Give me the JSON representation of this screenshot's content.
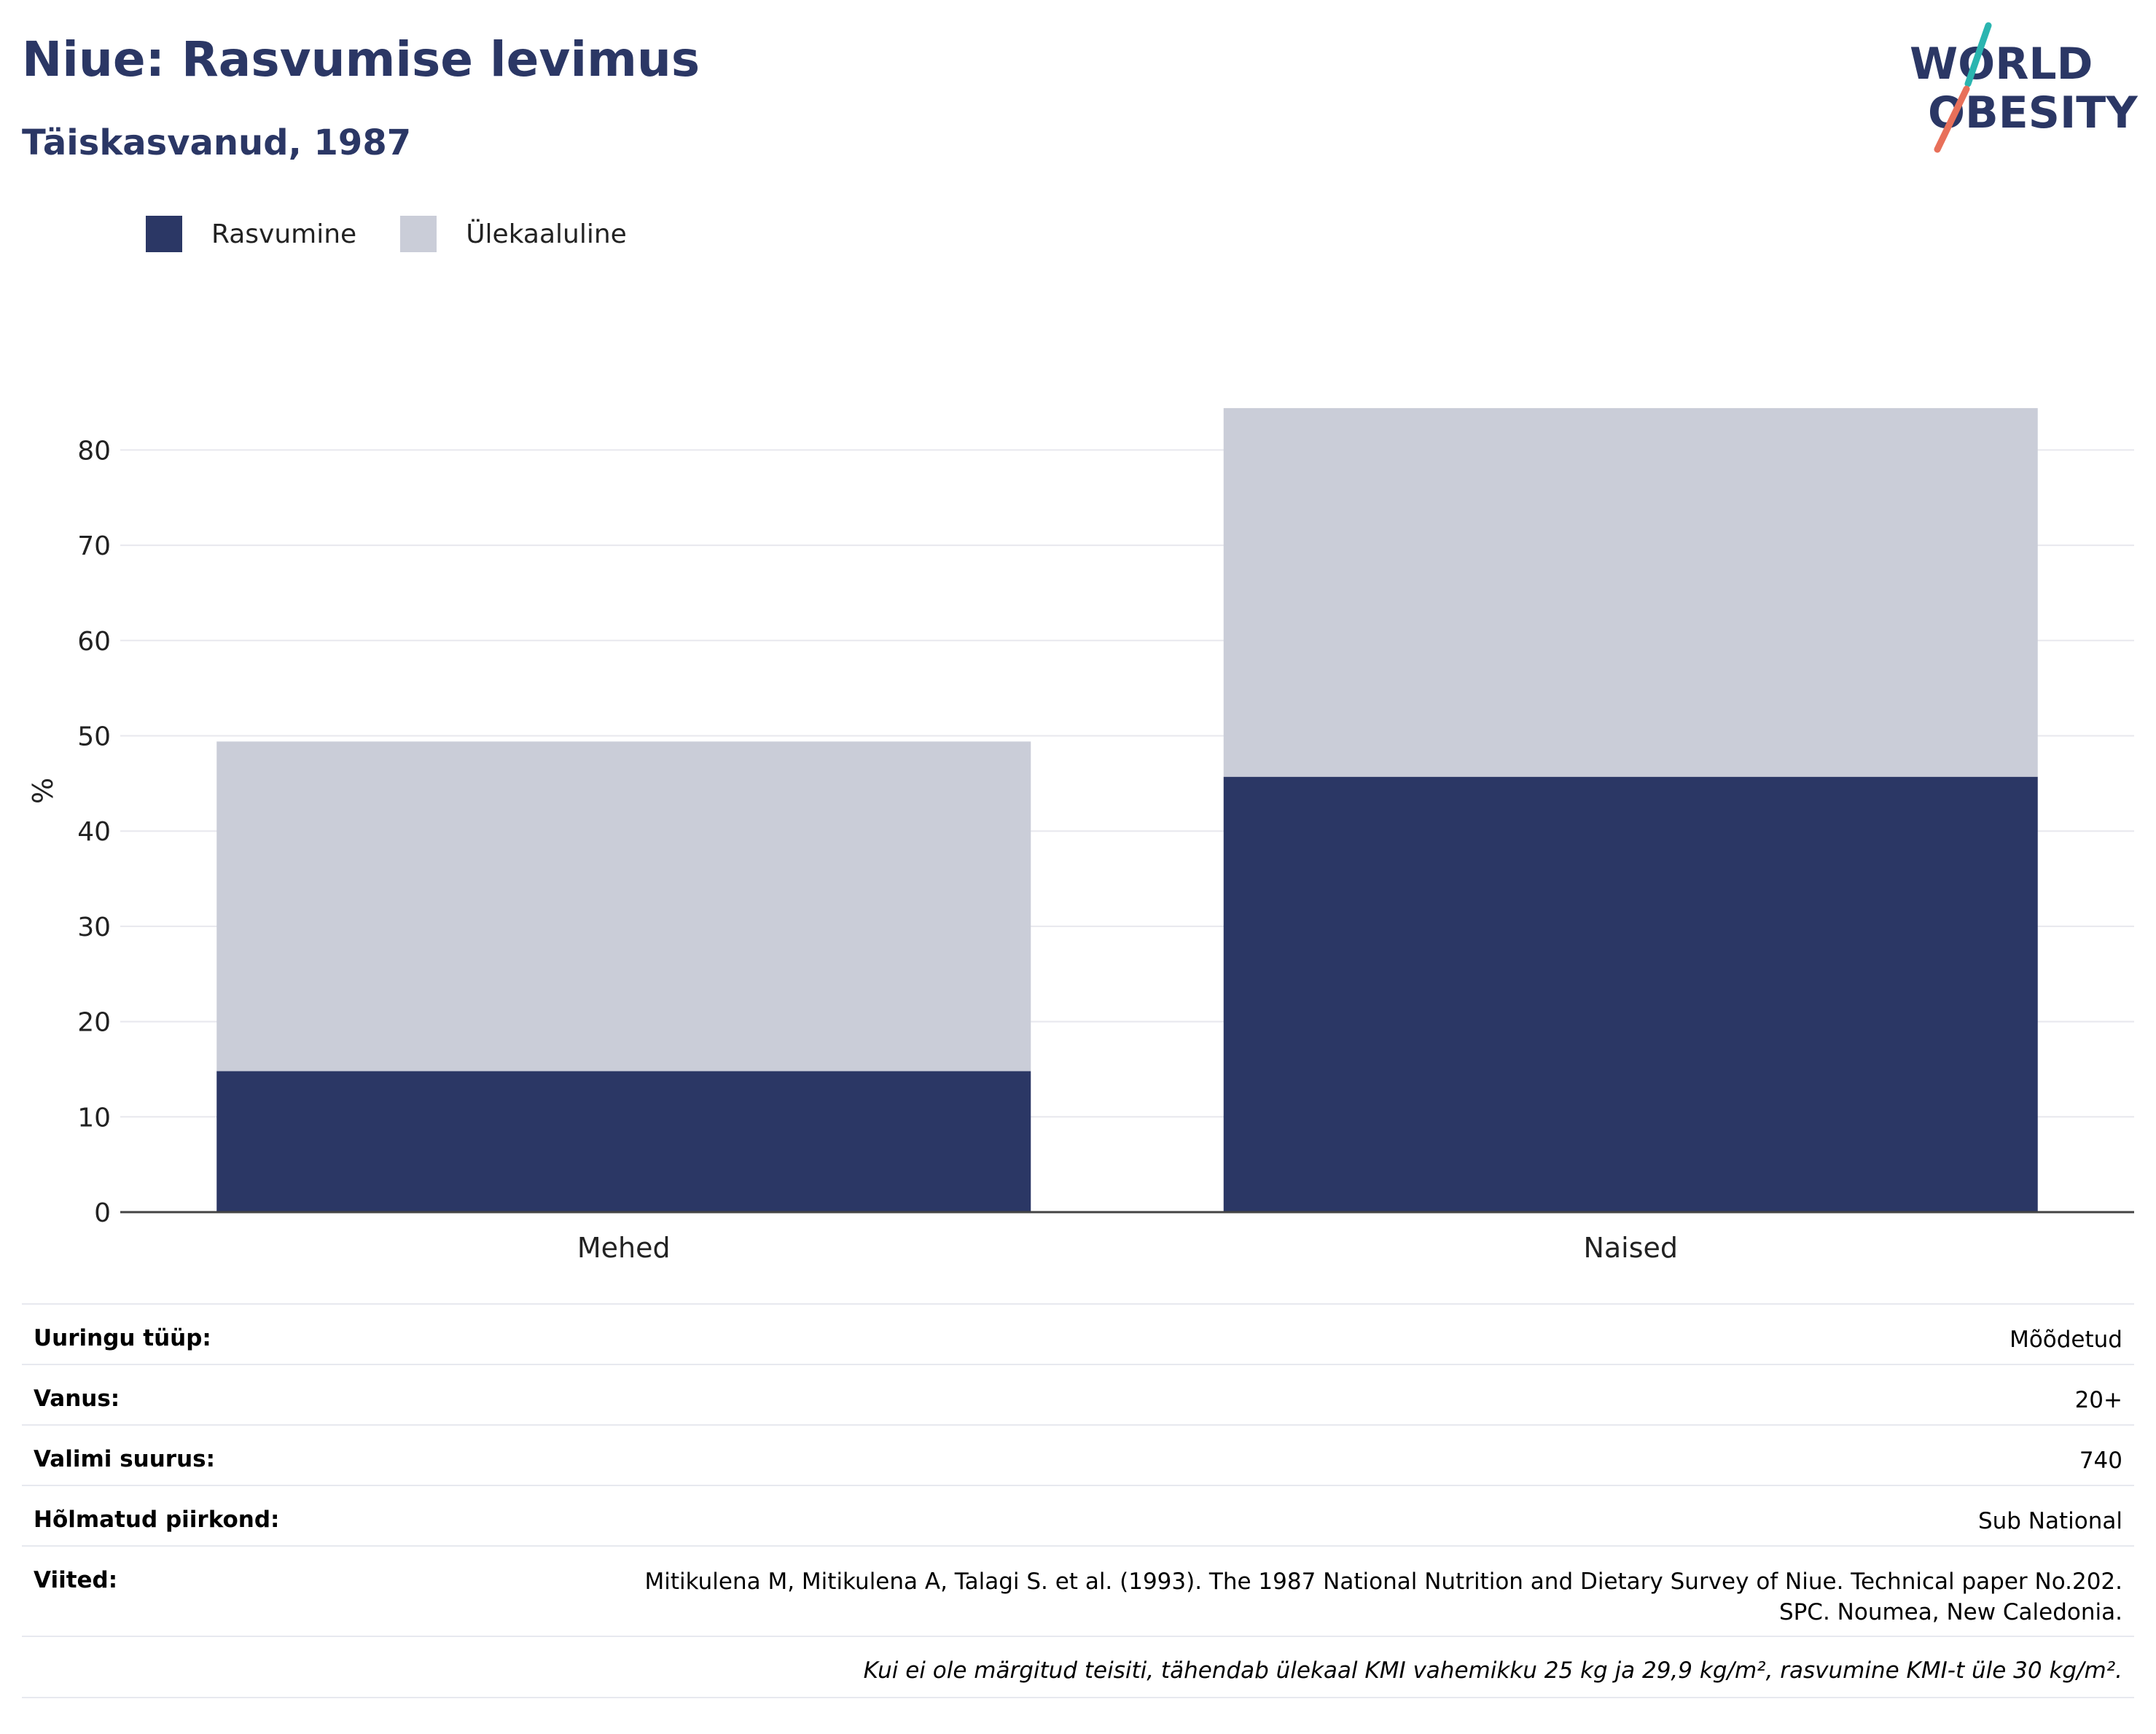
{
  "header": {
    "title": "Niue: Rasvumise levimus",
    "subtitle": "Täiskasvanud, 1987"
  },
  "logo": {
    "line1": "WORLD",
    "line2": "OBESITY"
  },
  "colors": {
    "obesity": "#2b3765",
    "overweight": "#cacdd8",
    "title": "#2b3765",
    "logo_teal": "#2bb5b0",
    "logo_red": "#e8705a"
  },
  "chart_data": {
    "type": "bar",
    "stacked": true,
    "categories": [
      "Mehed",
      "Naised"
    ],
    "series": [
      {
        "name": "Rasvumine",
        "values": [
          14.8,
          45.7
        ]
      },
      {
        "name": "Ülekaaluline",
        "values": [
          34.6,
          38.7
        ]
      }
    ],
    "ylabel": "%",
    "ylim": [
      0,
      85
    ],
    "yticks": [
      0,
      10,
      20,
      30,
      40,
      50,
      60,
      70,
      80
    ],
    "grid": true,
    "legend": "top-left"
  },
  "info": {
    "rows": [
      {
        "label": "Uuringu tüüp:",
        "value": "Mõõdetud"
      },
      {
        "label": "Vanus:",
        "value": "20+"
      },
      {
        "label": "Valimi suurus:",
        "value": "740"
      },
      {
        "label": "Hõlmatud piirkond:",
        "value": "Sub National"
      },
      {
        "label": "Viited:",
        "value_line1": "Mitikulena M, Mitikulena A, Talagi S. et al. (1993). The 1987 National Nutrition and Dietary Survey of Niue. Technical paper No.202.",
        "value_line2": "SPC. Noumea, New Caledonia."
      }
    ],
    "footnote": "Kui ei ole märgitud teisiti, tähendab ülekaal KMI vahemikku 25 kg ja 29,9 kg/m², rasvumine KMI-t üle 30 kg/m²."
  }
}
